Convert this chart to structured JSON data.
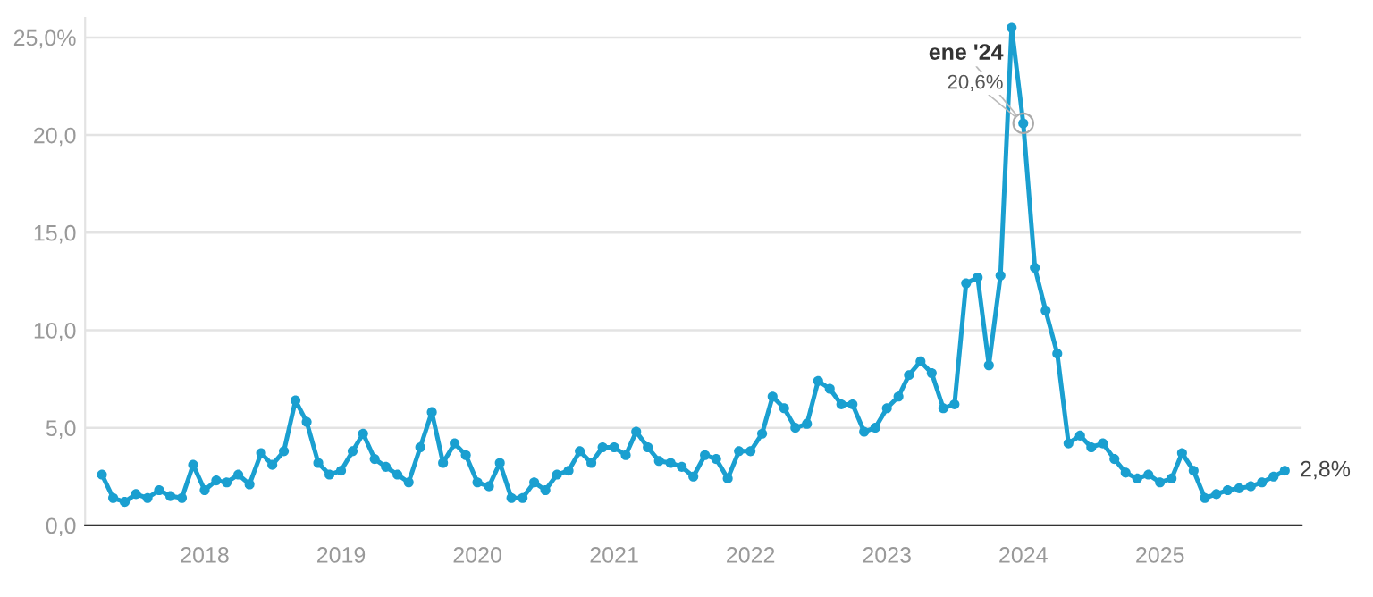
{
  "chart_data": {
    "type": "line",
    "x": [
      "2017-04",
      "2017-05",
      "2017-06",
      "2017-07",
      "2017-08",
      "2017-09",
      "2017-10",
      "2017-11",
      "2017-12",
      "2018-01",
      "2018-02",
      "2018-03",
      "2018-04",
      "2018-05",
      "2018-06",
      "2018-07",
      "2018-08",
      "2018-09",
      "2018-10",
      "2018-11",
      "2018-12",
      "2019-01",
      "2019-02",
      "2019-03",
      "2019-04",
      "2019-05",
      "2019-06",
      "2019-07",
      "2019-08",
      "2019-09",
      "2019-10",
      "2019-11",
      "2019-12",
      "2020-01",
      "2020-02",
      "2020-03",
      "2020-04",
      "2020-05",
      "2020-06",
      "2020-07",
      "2020-08",
      "2020-09",
      "2020-10",
      "2020-11",
      "2020-12",
      "2021-01",
      "2021-02",
      "2021-03",
      "2021-04",
      "2021-05",
      "2021-06",
      "2021-07",
      "2021-08",
      "2021-09",
      "2021-10",
      "2021-11",
      "2021-12",
      "2022-01",
      "2022-02",
      "2022-03",
      "2022-04",
      "2022-05",
      "2022-06",
      "2022-07",
      "2022-08",
      "2022-09",
      "2022-10",
      "2022-11",
      "2022-12",
      "2023-01",
      "2023-02",
      "2023-03",
      "2023-04",
      "2023-05",
      "2023-06",
      "2023-07",
      "2023-08",
      "2023-09",
      "2023-10",
      "2023-11",
      "2023-12",
      "2024-01",
      "2024-02",
      "2024-03",
      "2024-04",
      "2024-05",
      "2024-06",
      "2024-07",
      "2024-08",
      "2024-09",
      "2024-10",
      "2024-11",
      "2024-12",
      "2025-01",
      "2025-02",
      "2025-03",
      "2025-04",
      "2025-05",
      "2025-06",
      "2025-07",
      "2025-08",
      "2025-09",
      "2025-10",
      "2025-11",
      "2025-12"
    ],
    "series": [
      {
        "color": "#1a9fd0",
        "values": [
          2.6,
          1.4,
          1.2,
          1.6,
          1.4,
          1.8,
          1.5,
          1.4,
          3.1,
          1.8,
          2.3,
          2.2,
          2.6,
          2.1,
          3.7,
          3.1,
          3.8,
          6.4,
          5.3,
          3.2,
          2.6,
          2.8,
          3.8,
          4.7,
          3.4,
          3.0,
          2.6,
          2.2,
          4.0,
          5.8,
          3.2,
          4.2,
          3.6,
          2.2,
          2.0,
          3.2,
          1.4,
          1.4,
          2.2,
          1.8,
          2.6,
          2.8,
          3.8,
          3.2,
          4.0,
          4.0,
          3.6,
          4.8,
          4.0,
          3.3,
          3.2,
          3.0,
          2.5,
          3.6,
          3.4,
          2.4,
          3.8,
          3.8,
          4.7,
          6.6,
          6.0,
          5.0,
          5.2,
          7.4,
          7.0,
          6.2,
          6.2,
          4.8,
          5.0,
          6.0,
          6.6,
          7.7,
          8.4,
          7.8,
          6.0,
          6.2,
          12.4,
          12.7,
          8.2,
          12.8,
          25.5,
          20.6,
          13.2,
          11.0,
          8.8,
          4.2,
          4.6,
          4.0,
          4.2,
          3.4,
          2.7,
          2.4,
          2.6,
          2.2,
          2.4,
          3.7,
          2.8,
          1.4,
          1.6,
          1.8,
          1.9,
          2.0,
          2.2,
          2.5,
          2.8
        ]
      }
    ],
    "xlim": [
      "2017-02-15",
      "2026-01-15"
    ],
    "xticks": [
      {
        "value": "2018",
        "label": "2018"
      },
      {
        "value": "2019",
        "label": "2019"
      },
      {
        "value": "2020",
        "label": "2020"
      },
      {
        "value": "2021",
        "label": "2021"
      },
      {
        "value": "2022",
        "label": "2022"
      },
      {
        "value": "2023",
        "label": "2023"
      },
      {
        "value": "2024",
        "label": "2024"
      },
      {
        "value": "2025",
        "label": "2025"
      }
    ],
    "ylim": [
      0,
      26
    ],
    "yticks": [
      {
        "value": 0,
        "label": "0,0"
      },
      {
        "value": 5,
        "label": "5,0"
      },
      {
        "value": 10,
        "label": "10,0"
      },
      {
        "value": 15,
        "label": "15,0"
      },
      {
        "value": 20,
        "label": "20,0"
      },
      {
        "value": 25,
        "label": "25,0%"
      }
    ],
    "grid": "y",
    "marker": "circle",
    "line_style": "solid",
    "annotations": [
      {
        "text": "ene '24",
        "x": "2024-01",
        "y": 20.6
      },
      {
        "text": "20,6%",
        "x": "2024-01",
        "y": 20.6
      },
      {
        "text": "2,8%",
        "x": "2025-12",
        "y": 2.8
      }
    ]
  }
}
